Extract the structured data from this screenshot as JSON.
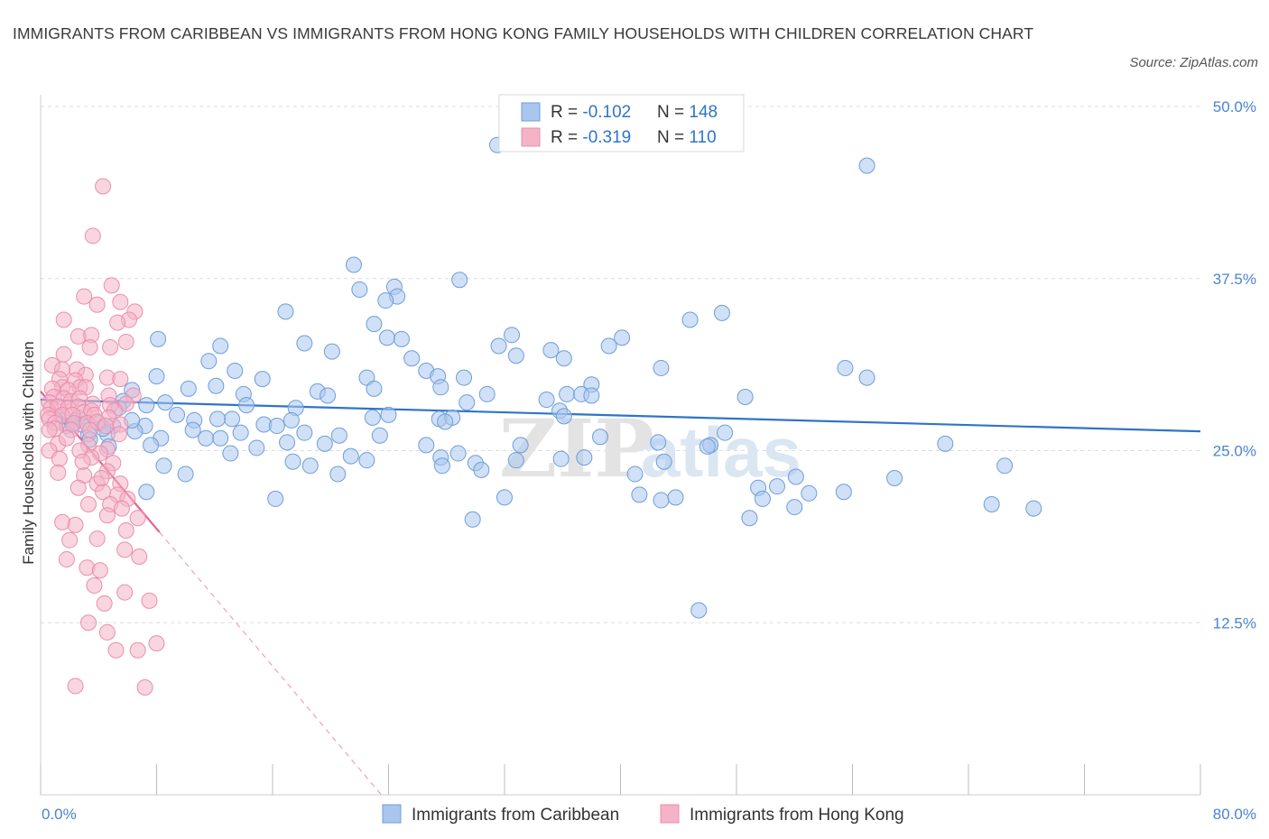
{
  "title": "IMMIGRANTS FROM CARIBBEAN VS IMMIGRANTS FROM HONG KONG FAMILY HOUSEHOLDS WITH CHILDREN CORRELATION CHART",
  "source": "Source: ZipAtlas.com",
  "watermark": {
    "zip": "ZIP",
    "atlas": "atlas"
  },
  "legend_stats": [
    {
      "r_label": "R = ",
      "r_value": "-0.102",
      "n_label": "N = ",
      "n_value": "148"
    },
    {
      "r_label": "R = ",
      "r_value": "-0.319",
      "n_label": "N = ",
      "n_value": "110"
    }
  ],
  "chart_data": {
    "type": "scatter",
    "ylabel": "Family Households with Children",
    "xlim": [
      0,
      80
    ],
    "ylim": [
      0,
      50
    ],
    "x_tick_labels": [
      {
        "value": 0,
        "label": "0.0%"
      },
      {
        "value": 80,
        "label": "80.0%"
      }
    ],
    "y_tick_labels": [
      {
        "value": 12.5,
        "label": "12.5%"
      },
      {
        "value": 25,
        "label": "25.0%"
      },
      {
        "value": 37.5,
        "label": "37.5%"
      },
      {
        "value": 50,
        "label": "50.0%"
      }
    ],
    "grid": true,
    "legend_position": "bottom-center",
    "series": [
      {
        "name": "Immigrants from Caribbean",
        "color": "#a9c6ee",
        "stroke": "#6e9ed8",
        "trend_color": "#2f74c8",
        "trend": {
          "x0": 0,
          "y0": 28.7,
          "x1": 80,
          "y1": 26.4,
          "dashed_from_x": null
        },
        "points": [
          [
            31.5,
            47.2
          ],
          [
            57.0,
            45.7
          ],
          [
            21.6,
            38.5
          ],
          [
            28.9,
            37.4
          ],
          [
            22.0,
            36.7
          ],
          [
            24.4,
            36.9
          ],
          [
            24.6,
            36.2
          ],
          [
            16.9,
            35.1
          ],
          [
            23.8,
            35.9
          ],
          [
            47.0,
            35.0
          ],
          [
            44.8,
            34.5
          ],
          [
            23.0,
            34.2
          ],
          [
            32.5,
            33.4
          ],
          [
            23.9,
            33.2
          ],
          [
            24.9,
            33.1
          ],
          [
            8.1,
            33.1
          ],
          [
            18.2,
            32.8
          ],
          [
            40.1,
            33.2
          ],
          [
            12.4,
            32.6
          ],
          [
            31.6,
            32.6
          ],
          [
            39.2,
            32.6
          ],
          [
            20.1,
            32.2
          ],
          [
            35.2,
            32.3
          ],
          [
            32.8,
            31.9
          ],
          [
            25.6,
            31.7
          ],
          [
            36.1,
            31.7
          ],
          [
            11.6,
            31.5
          ],
          [
            26.6,
            30.8
          ],
          [
            42.8,
            31.0
          ],
          [
            55.5,
            31.0
          ],
          [
            13.4,
            30.8
          ],
          [
            8.0,
            30.4
          ],
          [
            15.3,
            30.2
          ],
          [
            22.5,
            30.3
          ],
          [
            27.4,
            30.4
          ],
          [
            27.6,
            29.6
          ],
          [
            29.2,
            30.3
          ],
          [
            57.0,
            30.3
          ],
          [
            23.0,
            29.5
          ],
          [
            38.0,
            29.8
          ],
          [
            10.2,
            29.5
          ],
          [
            12.1,
            29.7
          ],
          [
            19.1,
            29.3
          ],
          [
            30.8,
            29.1
          ],
          [
            36.3,
            29.1
          ],
          [
            37.3,
            29.1
          ],
          [
            38.0,
            29.0
          ],
          [
            6.3,
            29.4
          ],
          [
            14.0,
            29.1
          ],
          [
            19.8,
            29.0
          ],
          [
            34.9,
            28.7
          ],
          [
            48.6,
            28.9
          ],
          [
            14.2,
            28.3
          ],
          [
            29.4,
            28.5
          ],
          [
            8.6,
            28.5
          ],
          [
            5.7,
            28.6
          ],
          [
            5.4,
            28.1
          ],
          [
            17.6,
            28.1
          ],
          [
            35.8,
            27.9
          ],
          [
            9.4,
            27.6
          ],
          [
            13.2,
            27.3
          ],
          [
            22.9,
            27.4
          ],
          [
            24.0,
            27.6
          ],
          [
            27.5,
            27.3
          ],
          [
            2.6,
            27.4
          ],
          [
            4.0,
            27.0
          ],
          [
            10.6,
            27.2
          ],
          [
            12.2,
            27.3
          ],
          [
            17.3,
            27.2
          ],
          [
            28.4,
            27.4
          ],
          [
            36.1,
            27.5
          ],
          [
            27.9,
            27.1
          ],
          [
            5.0,
            26.8
          ],
          [
            7.2,
            26.8
          ],
          [
            15.4,
            26.9
          ],
          [
            16.3,
            26.8
          ],
          [
            10.5,
            26.5
          ],
          [
            4.6,
            26.2
          ],
          [
            6.5,
            26.4
          ],
          [
            13.8,
            26.3
          ],
          [
            18.2,
            26.3
          ],
          [
            20.6,
            26.1
          ],
          [
            23.4,
            26.1
          ],
          [
            38.6,
            26.0
          ],
          [
            8.3,
            25.9
          ],
          [
            11.4,
            25.9
          ],
          [
            17.0,
            25.6
          ],
          [
            19.6,
            25.5
          ],
          [
            26.6,
            25.4
          ],
          [
            33.1,
            25.4
          ],
          [
            42.6,
            25.6
          ],
          [
            46.2,
            25.4
          ],
          [
            62.4,
            25.5
          ],
          [
            4.7,
            25.3
          ],
          [
            7.6,
            25.4
          ],
          [
            14.9,
            25.2
          ],
          [
            28.8,
            24.8
          ],
          [
            3.3,
            26.2
          ],
          [
            21.4,
            24.6
          ],
          [
            1.8,
            26.8
          ],
          [
            4.3,
            26.6
          ],
          [
            3.4,
            25.8
          ],
          [
            2.8,
            26.9
          ],
          [
            6.3,
            27.2
          ],
          [
            7.3,
            28.3
          ],
          [
            12.4,
            25.9
          ],
          [
            13.1,
            24.8
          ],
          [
            17.4,
            24.2
          ],
          [
            18.6,
            23.9
          ],
          [
            10.0,
            23.3
          ],
          [
            22.5,
            24.3
          ],
          [
            27.6,
            24.5
          ],
          [
            30.0,
            24.1
          ],
          [
            32.8,
            24.3
          ],
          [
            37.5,
            24.5
          ],
          [
            43.0,
            24.2
          ],
          [
            46.0,
            25.3
          ],
          [
            47.2,
            26.3
          ],
          [
            8.5,
            23.9
          ],
          [
            20.5,
            23.3
          ],
          [
            27.7,
            23.9
          ],
          [
            30.4,
            23.6
          ],
          [
            35.9,
            24.4
          ],
          [
            41.0,
            23.3
          ],
          [
            52.1,
            23.1
          ],
          [
            58.9,
            23.0
          ],
          [
            66.5,
            23.9
          ],
          [
            7.3,
            22.0
          ],
          [
            16.2,
            21.5
          ],
          [
            32.0,
            21.6
          ],
          [
            41.3,
            21.8
          ],
          [
            42.8,
            21.4
          ],
          [
            43.8,
            21.6
          ],
          [
            49.5,
            22.3
          ],
          [
            49.8,
            21.5
          ],
          [
            50.8,
            22.4
          ],
          [
            53.0,
            21.9
          ],
          [
            55.4,
            22.0
          ],
          [
            65.6,
            21.1
          ],
          [
            68.5,
            20.8
          ],
          [
            29.8,
            20.0
          ],
          [
            48.9,
            20.1
          ],
          [
            52.0,
            20.9
          ],
          [
            45.4,
            13.4
          ],
          [
            1.5,
            27.5
          ],
          [
            2.2,
            26.9
          ]
        ]
      },
      {
        "name": "Immigrants from Hong Kong",
        "color": "#f4b3c7",
        "stroke": "#e98ead",
        "trend_color": "#e8628f",
        "trend": {
          "x0": 0,
          "y0": 29.3,
          "x1": 23.5,
          "y1": 0,
          "dashed_from_x": 8.2
        },
        "points": [
          [
            4.3,
            44.2
          ],
          [
            3.6,
            40.6
          ],
          [
            3.0,
            36.2
          ],
          [
            3.9,
            35.6
          ],
          [
            6.5,
            35.1
          ],
          [
            4.9,
            37.0
          ],
          [
            5.5,
            35.8
          ],
          [
            6.1,
            34.5
          ],
          [
            1.6,
            34.5
          ],
          [
            5.3,
            34.3
          ],
          [
            2.6,
            33.3
          ],
          [
            3.5,
            33.4
          ],
          [
            5.9,
            32.9
          ],
          [
            1.6,
            32.0
          ],
          [
            3.4,
            32.5
          ],
          [
            4.8,
            32.5
          ],
          [
            0.8,
            31.2
          ],
          [
            1.5,
            30.9
          ],
          [
            2.5,
            30.9
          ],
          [
            3.1,
            30.5
          ],
          [
            1.3,
            30.2
          ],
          [
            2.4,
            30.1
          ],
          [
            4.6,
            30.3
          ],
          [
            5.5,
            30.2
          ],
          [
            1.5,
            29.6
          ],
          [
            2.7,
            29.6
          ],
          [
            3.1,
            29.6
          ],
          [
            4.7,
            29.0
          ],
          [
            6.4,
            29.0
          ],
          [
            0.8,
            29.5
          ],
          [
            1.9,
            29.4
          ],
          [
            0.9,
            28.9
          ],
          [
            1.6,
            28.8
          ],
          [
            2.1,
            28.6
          ],
          [
            2.7,
            28.8
          ],
          [
            0.6,
            28.5
          ],
          [
            3.6,
            28.4
          ],
          [
            4.8,
            28.3
          ],
          [
            5.9,
            28.4
          ],
          [
            0.7,
            28.1
          ],
          [
            1.2,
            28.2
          ],
          [
            1.9,
            28.1
          ],
          [
            2.6,
            28.2
          ],
          [
            3.0,
            27.8
          ],
          [
            3.5,
            27.9
          ],
          [
            5.1,
            27.9
          ],
          [
            0.5,
            27.6
          ],
          [
            1.5,
            27.6
          ],
          [
            2.2,
            27.6
          ],
          [
            3.7,
            27.6
          ],
          [
            4.7,
            27.4
          ],
          [
            0.6,
            27.3
          ],
          [
            1.0,
            27.0
          ],
          [
            2.3,
            27.0
          ],
          [
            3.2,
            27.0
          ],
          [
            3.9,
            27.1
          ],
          [
            4.5,
            26.8
          ],
          [
            5.5,
            26.9
          ],
          [
            1.0,
            26.6
          ],
          [
            2.1,
            26.5
          ],
          [
            3.4,
            26.5
          ],
          [
            5.4,
            26.2
          ],
          [
            1.2,
            25.5
          ],
          [
            3.3,
            25.4
          ],
          [
            4.6,
            25.1
          ],
          [
            0.6,
            25.0
          ],
          [
            2.7,
            25.0
          ],
          [
            4.1,
            24.8
          ],
          [
            1.3,
            24.4
          ],
          [
            3.5,
            24.5
          ],
          [
            5.0,
            24.1
          ],
          [
            4.6,
            23.5
          ],
          [
            1.2,
            23.4
          ],
          [
            3.0,
            23.2
          ],
          [
            3.9,
            22.6
          ],
          [
            5.5,
            22.6
          ],
          [
            2.6,
            22.3
          ],
          [
            4.3,
            22.0
          ],
          [
            5.3,
            21.8
          ],
          [
            6.0,
            21.5
          ],
          [
            3.3,
            21.1
          ],
          [
            4.8,
            21.1
          ],
          [
            5.6,
            20.8
          ],
          [
            4.6,
            20.3
          ],
          [
            6.7,
            20.1
          ],
          [
            1.5,
            19.8
          ],
          [
            2.4,
            19.6
          ],
          [
            3.9,
            18.6
          ],
          [
            5.8,
            17.8
          ],
          [
            6.8,
            17.3
          ],
          [
            1.8,
            17.1
          ],
          [
            3.2,
            16.5
          ],
          [
            4.1,
            16.3
          ],
          [
            5.8,
            14.7
          ],
          [
            7.5,
            14.1
          ],
          [
            4.4,
            13.9
          ],
          [
            3.3,
            12.5
          ],
          [
            4.6,
            11.8
          ],
          [
            5.2,
            10.5
          ],
          [
            6.7,
            10.5
          ],
          [
            8.0,
            11.0
          ],
          [
            2.4,
            7.9
          ],
          [
            7.2,
            7.8
          ],
          [
            0.6,
            26.5
          ],
          [
            1.8,
            25.9
          ],
          [
            2.9,
            24.2
          ],
          [
            4.2,
            23.0
          ],
          [
            5.9,
            19.2
          ],
          [
            2.0,
            18.5
          ],
          [
            3.7,
            15.2
          ]
        ]
      }
    ]
  }
}
